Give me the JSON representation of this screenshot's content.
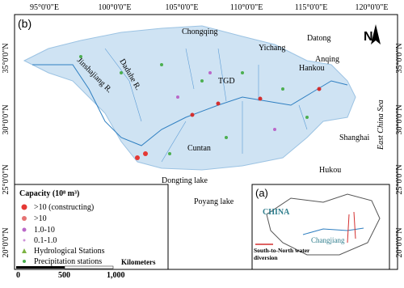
{
  "panel_label": "(b)",
  "longitudes": [
    "95°0'0\"E",
    "100°0'0\"E",
    "105°0'0\"E",
    "110°0'0\"E",
    "115°0'0\"E",
    "120°0'0\"E"
  ],
  "latitudes_left": [
    "35°0'0\"N",
    "30°0'0\"N",
    "25°0'0\"N",
    "20°0'0\"N"
  ],
  "latitudes_right": [
    "35°0'0\"N",
    "30°0'0\"N",
    "25°0'0\"N",
    "20°0'0\"N"
  ],
  "north": "N",
  "places": {
    "chongqing": "Chongqing",
    "yichang": "Yichang",
    "datong": "Datong",
    "anqing": "Anqing",
    "hankou": "Hankou",
    "tgd": "TGD",
    "daduhe": "Daduhe R.",
    "jinshajiang": "Jinshajiang R.",
    "cuntan": "Cuntan",
    "shanghai": "Shanghai",
    "hukou": "Hukou",
    "dongting": "Dongting lake",
    "poyang": "Poyang lake",
    "sea": "East China Sea"
  },
  "legend": {
    "title": "Capacity (10⁸ m³)",
    "items": [
      ">10 (constructing)",
      ">10",
      "1.0-10",
      "0.1-1.0",
      "Hydrological Stations",
      "Precipitation stations"
    ]
  },
  "scale": {
    "labels": [
      "0",
      "500",
      "1,000"
    ],
    "unit": "Kilometers"
  },
  "inset": {
    "label": "(a)",
    "country": "CHINA",
    "river": "Changjiang",
    "note": "South-to-North water diversion"
  }
}
